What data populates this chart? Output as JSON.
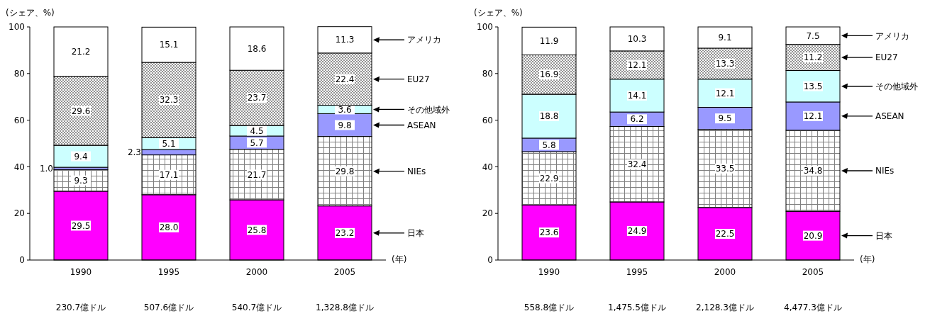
{
  "chart_data": [
    {
      "type": "bar",
      "stacked": true,
      "legend": "right",
      "ylabel": "(シェア、%)",
      "xlabel": "(年)",
      "categories": [
        "1990",
        "1995",
        "2000",
        "2005"
      ],
      "ylim": [
        0,
        100
      ],
      "yticks": [
        0,
        20,
        40,
        60,
        80,
        100
      ],
      "series": [
        {
          "name": "日本",
          "color": "#ff00ff",
          "values": [
            29.5,
            28.0,
            25.8,
            23.2
          ],
          "value_labels": [
            "29.5",
            "28.0",
            "25.8",
            "23.2"
          ]
        },
        {
          "name": "NIEs",
          "color": "#808080",
          "values": [
            9.3,
            17.1,
            21.7,
            29.8
          ],
          "value_labels": [
            "9.3",
            "17.1",
            "21.7",
            "29.8"
          ]
        },
        {
          "name": "ASEAN",
          "color": "#9999ff",
          "values": [
            1.0,
            2.3,
            5.7,
            9.8
          ],
          "value_labels": [
            "1.0",
            "2.3",
            "5.7",
            "9.8"
          ]
        },
        {
          "name": "その他域外",
          "color": "#ccffff",
          "values": [
            9.4,
            5.1,
            4.5,
            3.6
          ],
          "value_labels": [
            "9.4",
            "5.1",
            "4.5",
            "3.6"
          ]
        },
        {
          "name": "EU27",
          "color": "#606060",
          "values": [
            29.6,
            32.3,
            23.7,
            22.4
          ],
          "value_labels": [
            "29.6",
            "32.3",
            "23.7",
            "22.4"
          ]
        },
        {
          "name": "アメリカ",
          "color": "#ffffff",
          "values": [
            21.2,
            15.1,
            18.6,
            11.3
          ],
          "value_labels": [
            "21.2",
            "15.1",
            "18.6",
            "11.3"
          ]
        }
      ],
      "annotations": [
        "230.7億ドル",
        "507.6億ドル",
        "540.7億ドル",
        "1,328.8億ドル"
      ]
    },
    {
      "type": "bar",
      "stacked": true,
      "legend": "right",
      "ylabel": "(シェア、%)",
      "xlabel": "(年)",
      "categories": [
        "1990",
        "1995",
        "2000",
        "2005"
      ],
      "ylim": [
        0,
        100
      ],
      "yticks": [
        0,
        20,
        40,
        60,
        80,
        100
      ],
      "series": [
        {
          "name": "日本",
          "color": "#ff00ff",
          "values": [
            23.6,
            24.9,
            22.5,
            20.9
          ],
          "value_labels": [
            "23.6",
            "24.9",
            "22.5",
            "20.9"
          ]
        },
        {
          "name": "NIEs",
          "color": "#808080",
          "values": [
            22.9,
            32.4,
            33.5,
            34.8
          ],
          "value_labels": [
            "22.9",
            "32.4",
            "33.5",
            "34.8"
          ]
        },
        {
          "name": "ASEAN",
          "color": "#9999ff",
          "values": [
            5.8,
            6.2,
            9.5,
            12.1
          ],
          "value_labels": [
            "5.8",
            "6.2",
            "9.5",
            "12.1"
          ]
        },
        {
          "name": "その他域外",
          "color": "#ccffff",
          "values": [
            18.8,
            14.1,
            12.1,
            13.5
          ],
          "value_labels": [
            "18.8",
            "14.1",
            "12.1",
            "13.5"
          ]
        },
        {
          "name": "EU27",
          "color": "#606060",
          "values": [
            16.9,
            12.1,
            13.3,
            11.2
          ],
          "value_labels": [
            "16.9",
            "12.1",
            "13.3",
            "11.2"
          ]
        },
        {
          "name": "アメリカ",
          "color": "#ffffff",
          "values": [
            11.9,
            10.3,
            9.1,
            7.5
          ],
          "value_labels": [
            "11.9",
            "10.3",
            "9.1",
            "7.5"
          ]
        }
      ],
      "annotations": [
        "558.8億ドル",
        "1,475.5億ドル",
        "2,128.3億ドル",
        "4,477.3億ドル"
      ]
    }
  ]
}
